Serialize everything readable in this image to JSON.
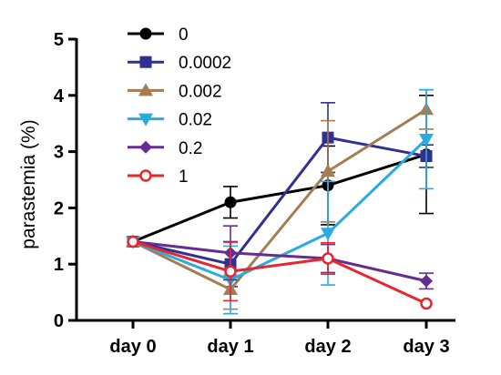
{
  "chart_data": {
    "type": "line",
    "title": "",
    "xlabel": "",
    "ylabel": "parastemia (%)",
    "ylim": [
      0,
      5
    ],
    "yticks": [
      0,
      1,
      2,
      3,
      4,
      5
    ],
    "categories": [
      "day 0",
      "day 1",
      "day 2",
      "day 3"
    ],
    "legend_position": "top-left",
    "grid": false,
    "series": [
      {
        "name": "0",
        "color": "#000000",
        "marker": "circle",
        "values": [
          1.4,
          2.1,
          2.4,
          2.95
        ],
        "err": [
          0,
          0.28,
          0.7,
          1.05
        ]
      },
      {
        "name": "0.0002",
        "color": "#2e3192",
        "marker": "square",
        "values": [
          1.4,
          1.0,
          3.25,
          2.92
        ],
        "err": [
          0,
          0.4,
          0.62,
          0.2
        ]
      },
      {
        "name": "0.002",
        "color": "#a67c52",
        "marker": "triangle-up",
        "values": [
          1.4,
          0.55,
          2.65,
          3.75
        ],
        "err": [
          0,
          0.35,
          0.9,
          0.35
        ]
      },
      {
        "name": "0.02",
        "color": "#29abe2",
        "marker": "triangle-down",
        "values": [
          1.4,
          0.72,
          1.55,
          3.22
        ],
        "err": [
          0,
          0.6,
          0.92,
          0.88
        ]
      },
      {
        "name": "0.2",
        "color": "#662d91",
        "marker": "diamond",
        "values": [
          1.4,
          1.2,
          1.1,
          0.7
        ],
        "err": [
          0,
          0.48,
          0.25,
          0.14
        ]
      },
      {
        "name": "1",
        "color": "#e8262d",
        "marker": "circle-open",
        "values": [
          1.4,
          0.87,
          1.1,
          0.3
        ],
        "err": [
          0,
          0.52,
          0.28,
          0
        ]
      }
    ]
  }
}
